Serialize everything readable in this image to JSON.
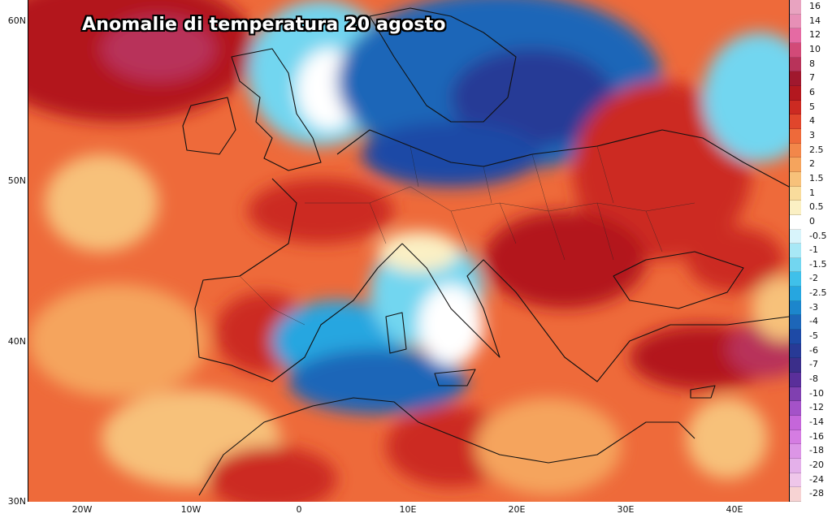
{
  "title": "Anomalie di temperatura 20 agosto",
  "lat_labels": [
    "60N",
    "50N",
    "40N",
    "30N"
  ],
  "lon_labels": [
    "20W",
    "10W",
    "0",
    "10E",
    "20E",
    "30E",
    "40E"
  ],
  "colorbar": {
    "labels": [
      "16",
      "14",
      "12",
      "10",
      "8",
      "7",
      "6",
      "5",
      "4",
      "3",
      "2.5",
      "2",
      "1.5",
      "1",
      "0.5",
      "0",
      "-0.5",
      "-1",
      "-1.5",
      "-2",
      "-2.5",
      "-3",
      "-4",
      "-5",
      "-6",
      "-7",
      "-8",
      "-10",
      "-12",
      "-14",
      "-16",
      "-18",
      "-20",
      "-24",
      "-28"
    ],
    "colors": [
      "#e8a3c0",
      "#e78fb6",
      "#e56aa3",
      "#d24a78",
      "#b8335a",
      "#a0182e",
      "#b3181f",
      "#cc2a22",
      "#e0462c",
      "#ee6a3a",
      "#f2874a",
      "#f5a45d",
      "#f7c17a",
      "#f9dc9c",
      "#fbf0c4",
      "#ffffff",
      "#d8f4fb",
      "#a8e8f6",
      "#72d6f0",
      "#3fc0ea",
      "#26a6e0",
      "#1c86cc",
      "#1d66b8",
      "#1e4aa6",
      "#283a96",
      "#3b2e8a",
      "#5a2f9a",
      "#8040b0",
      "#a452c8",
      "#c566da",
      "#d57ce2",
      "#dc95e6",
      "#e4b0ea",
      "#efc6ea",
      "#f7d3d3"
    ]
  },
  "map_colors": {
    "hot": "#cc2a22",
    "warm": "#ee6a3a",
    "mild": "#f7c17a",
    "neutral": "#ffffff",
    "cool": "#72d6f0",
    "cold": "#1d66b8",
    "very_cold": "#283a96"
  }
}
